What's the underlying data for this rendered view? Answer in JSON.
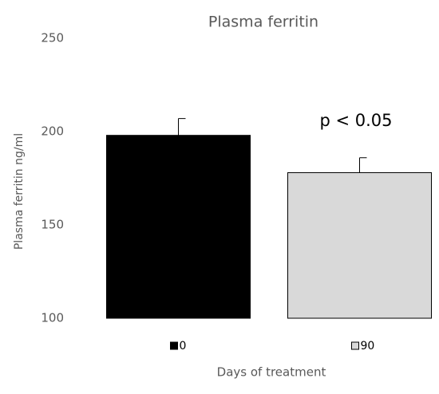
{
  "chart_data": {
    "type": "bar",
    "title": "Plasma ferritin",
    "x_label": "Days of treatment",
    "y_label": "Plasma ferritin ng/ml",
    "categories": [
      "0",
      "90"
    ],
    "values": [
      198,
      178
    ],
    "errors": [
      9,
      8
    ],
    "colors": [
      "#000000",
      "#d9d9d9"
    ],
    "ylim": [
      100,
      250
    ],
    "yticks": [
      100,
      150,
      200,
      250
    ],
    "grid": false,
    "annotation": "p < 0.05"
  }
}
